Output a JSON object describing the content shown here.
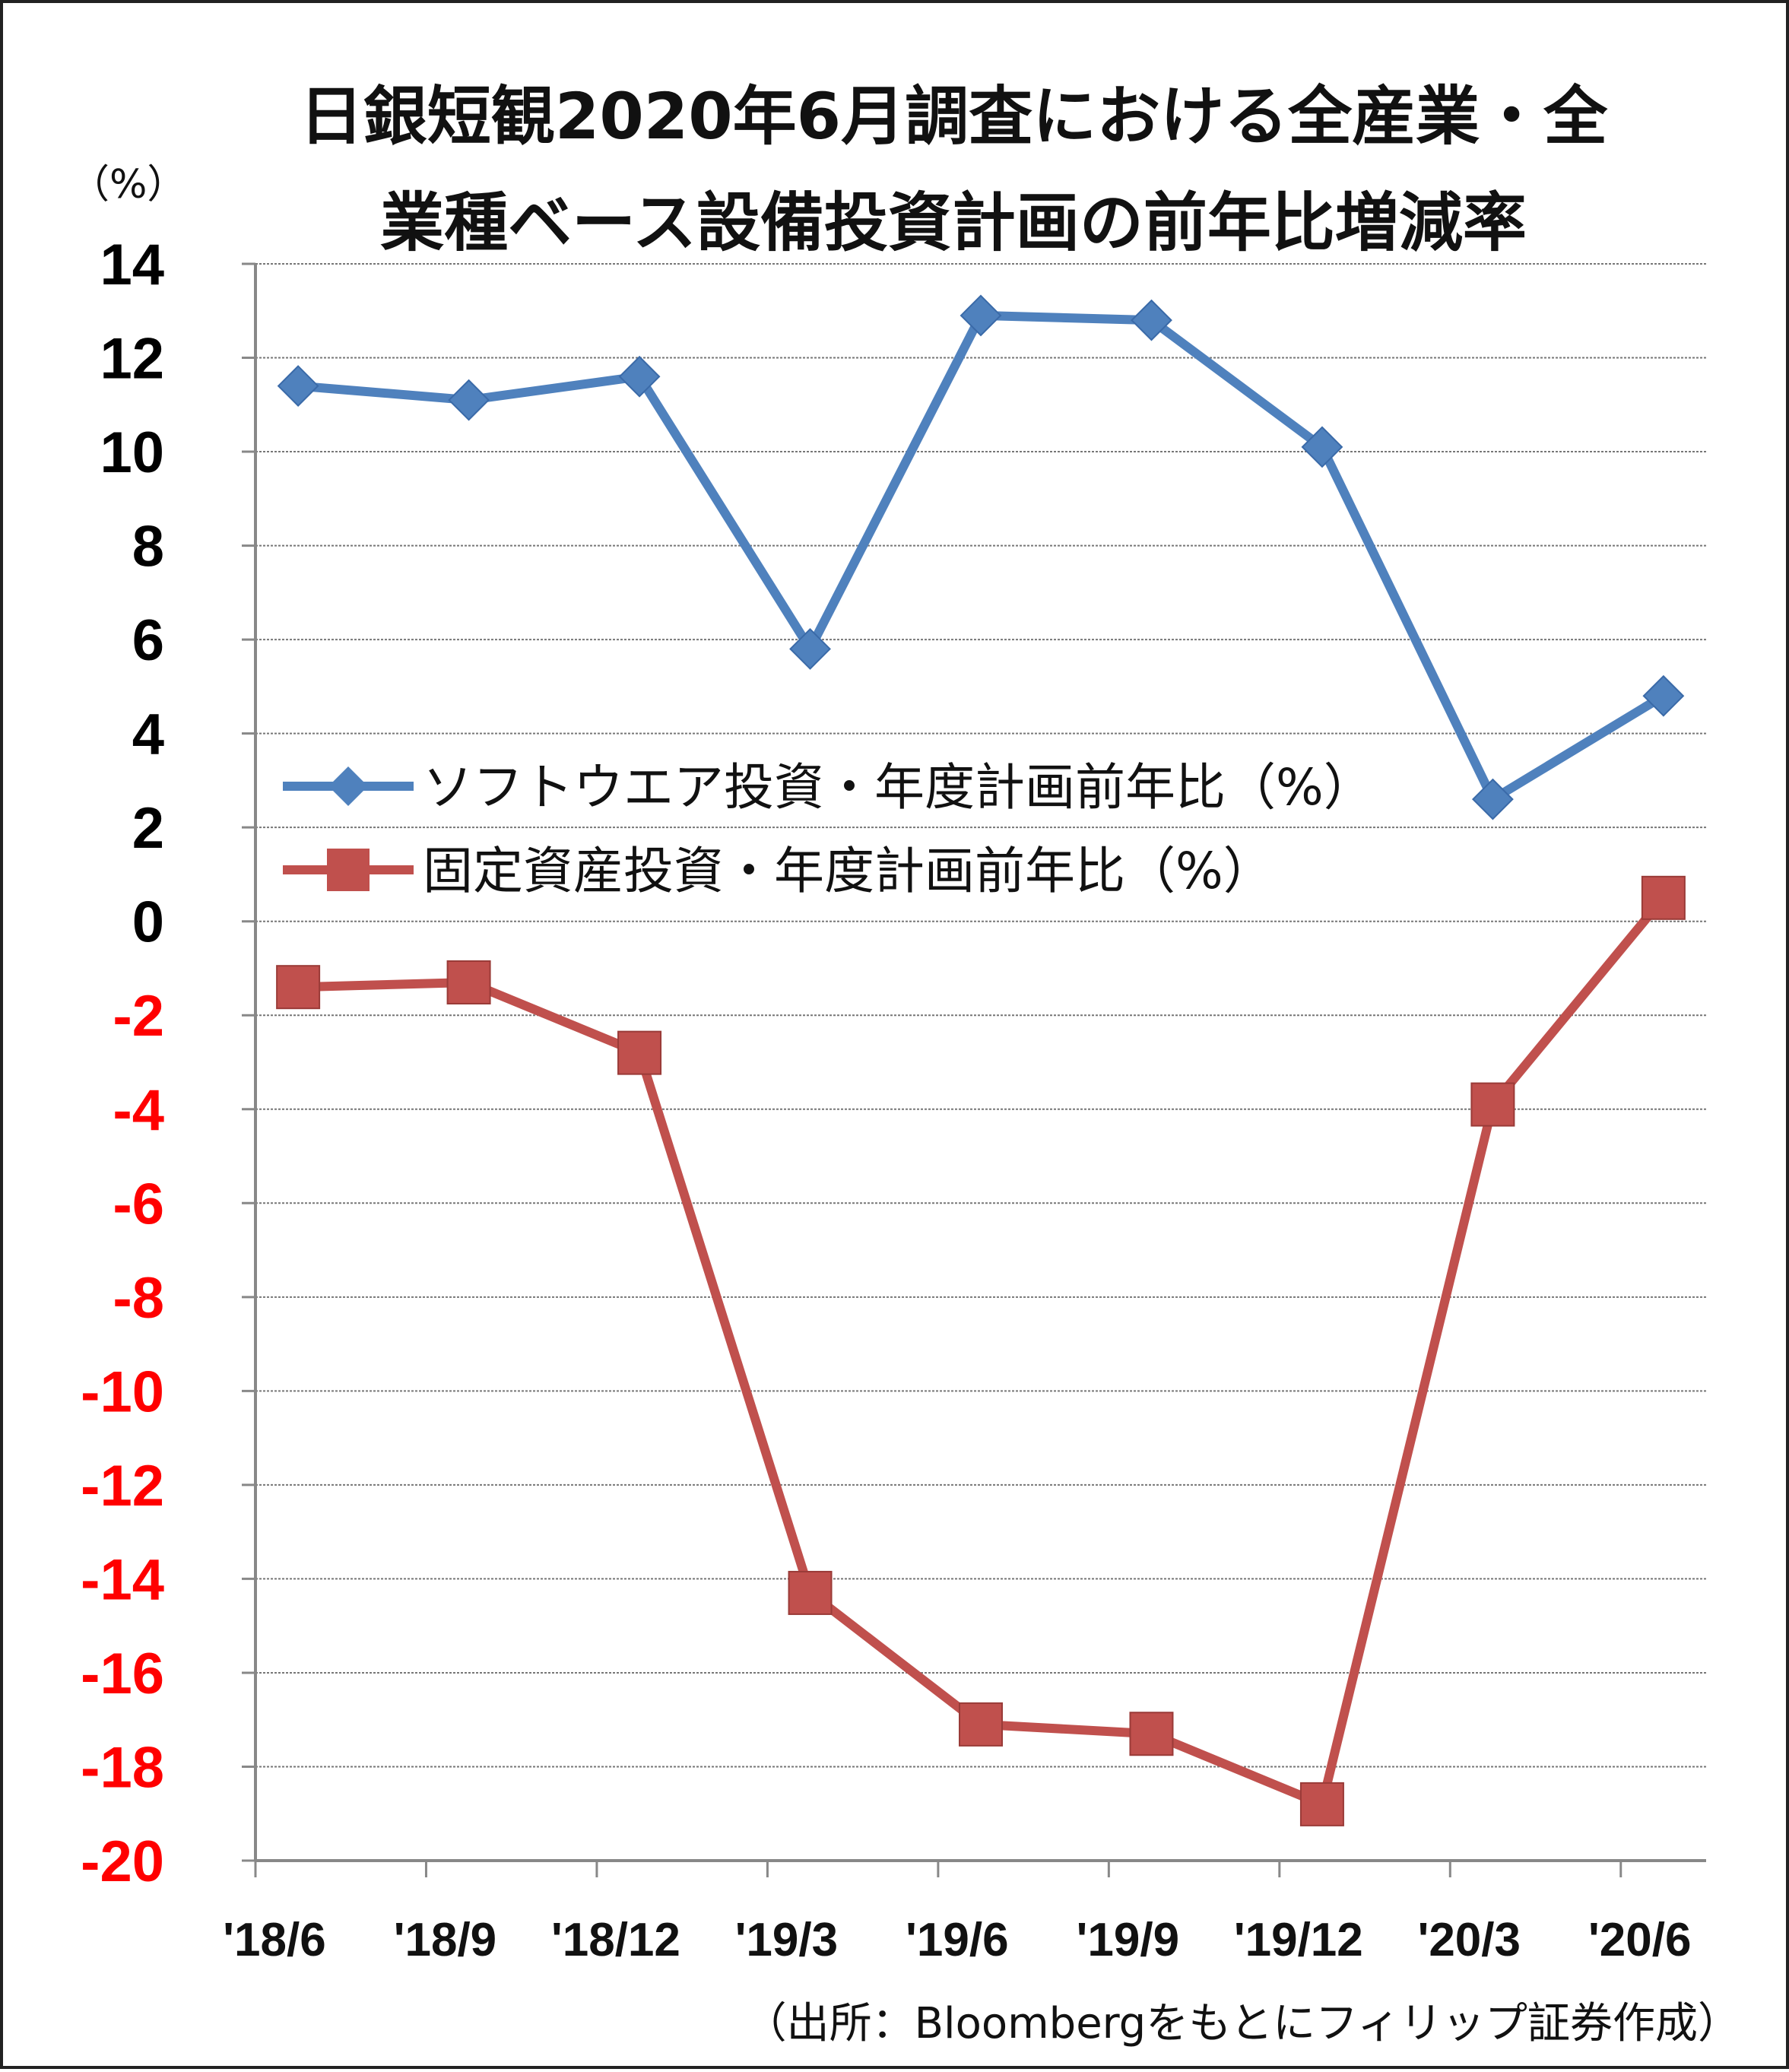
{
  "chart_data": {
    "type": "line",
    "title_line1": "日銀短観2020年6月調査における全産業・全",
    "title_line2": "業種ベース設備投資計画の前年比増減率",
    "ylabel": "（%）",
    "ylim": [
      -20,
      14
    ],
    "ytick_step": 2,
    "yticks": [
      "14",
      "12",
      "10",
      "8",
      "6",
      "4",
      "2",
      "0",
      "-2",
      "-4",
      "-6",
      "-8",
      "-10",
      "-12",
      "-14",
      "-16",
      "-18",
      "-20"
    ],
    "categories": [
      "'18/6",
      "'18/9",
      "'18/12",
      "'19/3",
      "'19/6",
      "'19/9",
      "'19/12",
      "'20/3",
      "'20/6"
    ],
    "grid": true,
    "legend_position": "center-left",
    "series": [
      {
        "name": "ソフトウエア投資・年度計画前年比（%）",
        "color": "#4f81bd",
        "marker": "diamond",
        "values": [
          11.4,
          11.1,
          11.6,
          5.8,
          12.9,
          12.8,
          10.1,
          2.6,
          4.8
        ]
      },
      {
        "name": "固定資産投資・年度計画前年比（%）",
        "color": "#c0504d",
        "marker": "square",
        "values": [
          -1.4,
          -1.3,
          -2.8,
          -14.3,
          -17.1,
          -17.3,
          -18.8,
          -3.9,
          0.5
        ]
      }
    ],
    "positive_tick_color": "#000000",
    "negative_tick_color": "#ff0000"
  },
  "source": "（出所：Bloombergをもとにフィリップ証券作成）"
}
